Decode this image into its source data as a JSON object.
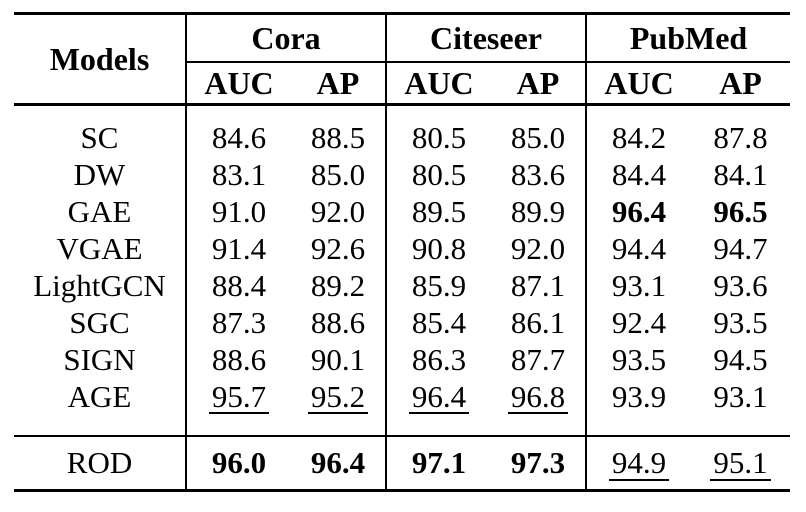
{
  "page": {
    "background_color": "#ffffff",
    "text_color": "#000000",
    "rule_color": "#000000"
  },
  "table": {
    "corner_header": "Models",
    "groups": [
      {
        "label": "Cora",
        "subcolumns": [
          "AUC",
          "AP"
        ]
      },
      {
        "label": "Citeseer",
        "subcolumns": [
          "AUC",
          "AP"
        ]
      },
      {
        "label": "PubMed",
        "subcolumns": [
          "AUC",
          "AP"
        ]
      }
    ],
    "rows": [
      {
        "model": "SC",
        "values": [
          {
            "text": "84.6",
            "format": "plain"
          },
          {
            "text": "88.5",
            "format": "plain"
          },
          {
            "text": "80.5",
            "format": "plain"
          },
          {
            "text": "85.0",
            "format": "plain"
          },
          {
            "text": "84.2",
            "format": "plain"
          },
          {
            "text": "87.8",
            "format": "plain"
          }
        ]
      },
      {
        "model": "DW",
        "values": [
          {
            "text": "83.1",
            "format": "plain"
          },
          {
            "text": "85.0",
            "format": "plain"
          },
          {
            "text": "80.5",
            "format": "plain"
          },
          {
            "text": "83.6",
            "format": "plain"
          },
          {
            "text": "84.4",
            "format": "plain"
          },
          {
            "text": "84.1",
            "format": "plain"
          }
        ]
      },
      {
        "model": "GAE",
        "values": [
          {
            "text": "91.0",
            "format": "plain"
          },
          {
            "text": "92.0",
            "format": "plain"
          },
          {
            "text": "89.5",
            "format": "plain"
          },
          {
            "text": "89.9",
            "format": "plain"
          },
          {
            "text": "96.4",
            "format": "bold"
          },
          {
            "text": "96.5",
            "format": "bold"
          }
        ]
      },
      {
        "model": "VGAE",
        "values": [
          {
            "text": "91.4",
            "format": "plain"
          },
          {
            "text": "92.6",
            "format": "plain"
          },
          {
            "text": "90.8",
            "format": "plain"
          },
          {
            "text": "92.0",
            "format": "plain"
          },
          {
            "text": "94.4",
            "format": "plain"
          },
          {
            "text": "94.7",
            "format": "plain"
          }
        ]
      },
      {
        "model": "LightGCN",
        "values": [
          {
            "text": "88.4",
            "format": "plain"
          },
          {
            "text": "89.2",
            "format": "plain"
          },
          {
            "text": "85.9",
            "format": "plain"
          },
          {
            "text": "87.1",
            "format": "plain"
          },
          {
            "text": "93.1",
            "format": "plain"
          },
          {
            "text": "93.6",
            "format": "plain"
          }
        ]
      },
      {
        "model": "SGC",
        "values": [
          {
            "text": "87.3",
            "format": "plain"
          },
          {
            "text": "88.6",
            "format": "plain"
          },
          {
            "text": "85.4",
            "format": "plain"
          },
          {
            "text": "86.1",
            "format": "plain"
          },
          {
            "text": "92.4",
            "format": "plain"
          },
          {
            "text": "93.5",
            "format": "plain"
          }
        ]
      },
      {
        "model": "SIGN",
        "values": [
          {
            "text": "88.6",
            "format": "plain"
          },
          {
            "text": "90.1",
            "format": "plain"
          },
          {
            "text": "86.3",
            "format": "plain"
          },
          {
            "text": "87.7",
            "format": "plain"
          },
          {
            "text": "93.5",
            "format": "plain"
          },
          {
            "text": "94.5",
            "format": "plain"
          }
        ]
      },
      {
        "model": "AGE",
        "values": [
          {
            "text": "95.7",
            "format": "underline"
          },
          {
            "text": "95.2",
            "format": "underline"
          },
          {
            "text": "96.4",
            "format": "underline"
          },
          {
            "text": "96.8",
            "format": "underline"
          },
          {
            "text": "93.9",
            "format": "plain"
          },
          {
            "text": "93.1",
            "format": "plain"
          }
        ]
      }
    ],
    "footer_row": {
      "model": "ROD",
      "values": [
        {
          "text": "96.0",
          "format": "bold"
        },
        {
          "text": "96.4",
          "format": "bold"
        },
        {
          "text": "97.1",
          "format": "bold"
        },
        {
          "text": "97.3",
          "format": "bold"
        },
        {
          "text": "94.9",
          "format": "underline"
        },
        {
          "text": "95.1",
          "format": "underline"
        }
      ]
    }
  }
}
